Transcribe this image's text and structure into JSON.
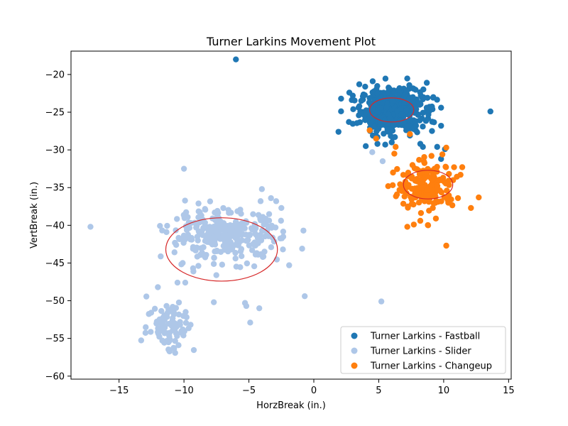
{
  "chart_data": {
    "type": "scatter",
    "title": "Turner Larkins Movement Plot",
    "xlabel": "HorzBreak (in.)",
    "ylabel": "VertBreak (in.)",
    "xlim": [
      -18.7,
      15.2
    ],
    "ylim": [
      -60.4,
      -16.9
    ],
    "xticks": [
      -15,
      -10,
      -5,
      0,
      5,
      10,
      15
    ],
    "xtick_labels": [
      "−15",
      "−10",
      "−5",
      "0",
      "5",
      "10",
      "15"
    ],
    "yticks": [
      -60,
      -55,
      -50,
      -45,
      -40,
      -35,
      -30,
      -25,
      -20
    ],
    "ytick_labels": [
      "−60",
      "−55",
      "−50",
      "−45",
      "−40",
      "−35",
      "−30",
      "−25",
      "−20"
    ],
    "grid": false,
    "legend_position": "lower-right",
    "series": [
      {
        "name": "Turner Larkins - Fastball",
        "color": "#1f77b4",
        "cluster": {
          "mean": [
            6.0,
            -24.7
          ],
          "sd": [
            1.2,
            1.4
          ],
          "count": 520
        },
        "points": [
          [
            -6.0,
            -18.0
          ],
          [
            13.6,
            -24.9
          ],
          [
            1.9,
            -27.6
          ],
          [
            2.1,
            -23.2
          ],
          [
            2.7,
            -26.3
          ],
          [
            4.0,
            -29.5
          ],
          [
            4.9,
            -29.2
          ],
          [
            5.5,
            -29.3
          ],
          [
            6.0,
            -29.0
          ],
          [
            7.4,
            -28.1
          ],
          [
            8.2,
            -29.2
          ],
          [
            8.4,
            -29.6
          ],
          [
            9.5,
            -29.6
          ],
          [
            9.8,
            -31.2
          ],
          [
            10.1,
            -29.9
          ],
          [
            9.1,
            -27.5
          ],
          [
            9.8,
            -26.8
          ],
          [
            3.5,
            -21.3
          ],
          [
            3.0,
            -22.8
          ],
          [
            8.7,
            -21.1
          ],
          [
            9.2,
            -23.0
          ],
          [
            9.8,
            -24.4
          ],
          [
            4.9,
            -28.3
          ]
        ]
      },
      {
        "name": "Turner Larkins - Slider",
        "color": "#aec7e8",
        "cluster": {
          "mean": [
            -6.8,
            -41.3
          ],
          "sd": [
            2.1,
            1.6
          ],
          "count": 300
        },
        "cluster2": {
          "mean": [
            -11.0,
            -53.3
          ],
          "sd": [
            0.9,
            1.8
          ],
          "count": 90
        },
        "points": [
          [
            -17.2,
            -40.2
          ],
          [
            -10.0,
            -32.5
          ],
          [
            -4.0,
            -35.2
          ],
          [
            -4.1,
            -36.8
          ],
          [
            -3.3,
            -36.4
          ],
          [
            -2.9,
            -36.8
          ],
          [
            -2.5,
            -37.7
          ],
          [
            -0.8,
            -40.7
          ],
          [
            -0.9,
            -43.1
          ],
          [
            -1.9,
            -45.3
          ],
          [
            -0.7,
            -49.4
          ],
          [
            -3.8,
            -43.5
          ],
          [
            -5.3,
            -50.3
          ],
          [
            -5.2,
            -50.7
          ],
          [
            -4.9,
            -52.9
          ],
          [
            -4.2,
            -51.0
          ],
          [
            -7.7,
            -50.2
          ],
          [
            5.2,
            -50.1
          ],
          [
            4.5,
            -30.3
          ],
          [
            5.3,
            -31.5
          ],
          [
            -9.3,
            -45.7
          ],
          [
            -9.9,
            -47.6
          ],
          [
            -10.5,
            -47.6
          ],
          [
            -10.6,
            -42.6
          ],
          [
            -10.1,
            -45.0
          ]
        ]
      },
      {
        "name": "Turner Larkins - Changeup",
        "color": "#ff7f0e",
        "cluster": {
          "mean": [
            8.7,
            -34.9
          ],
          "sd": [
            1.1,
            1.5
          ],
          "count": 180
        },
        "points": [
          [
            10.2,
            -42.7
          ],
          [
            12.7,
            -36.3
          ],
          [
            12.1,
            -37.7
          ],
          [
            11.3,
            -33.3
          ],
          [
            10.8,
            -32.3
          ],
          [
            10.2,
            -29.7
          ],
          [
            9.9,
            -30.6
          ],
          [
            7.4,
            -27.9
          ],
          [
            6.3,
            -29.6
          ],
          [
            6.2,
            -30.5
          ],
          [
            4.8,
            -28.5
          ],
          [
            4.3,
            -27.4
          ],
          [
            6.1,
            -33.0
          ],
          [
            6.6,
            -35.3
          ],
          [
            6.4,
            -35.9
          ],
          [
            7.2,
            -40.2
          ],
          [
            7.7,
            -39.9
          ],
          [
            8.2,
            -39.4
          ],
          [
            9.4,
            -39.1
          ],
          [
            8.8,
            -40.0
          ]
        ]
      }
    ],
    "ellipses": [
      {
        "series": "Turner Larkins - Fastball",
        "center": [
          6.0,
          -24.7
        ],
        "rx": 1.7,
        "ry": 1.6,
        "color": "#d62728"
      },
      {
        "series": "Turner Larkins - Slider",
        "center": [
          -7.1,
          -43.2
        ],
        "rx": 4.3,
        "ry": 4.2,
        "color": "#d62728"
      },
      {
        "series": "Turner Larkins - Changeup",
        "center": [
          8.8,
          -34.6
        ],
        "rx": 1.9,
        "ry": 1.9,
        "color": "#d62728"
      }
    ]
  }
}
